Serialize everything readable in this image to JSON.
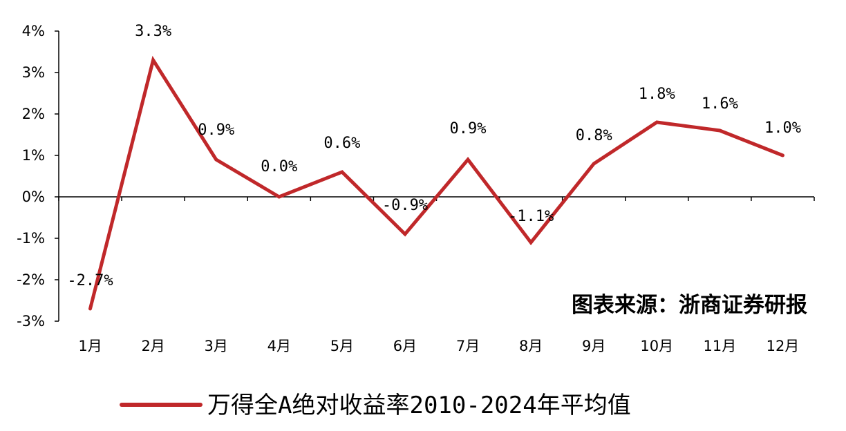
{
  "chart_data": {
    "type": "line",
    "categories": [
      "1月",
      "2月",
      "3月",
      "4月",
      "5月",
      "6月",
      "7月",
      "8月",
      "9月",
      "10月",
      "11月",
      "12月"
    ],
    "series": [
      {
        "name": "万得全A绝对收益率2010-2024年平均值",
        "values": [
          -2.7,
          3.3,
          0.9,
          0.0,
          0.6,
          -0.9,
          0.9,
          -1.1,
          0.8,
          1.8,
          1.6,
          1.0
        ],
        "labels": [
          "-2.7%",
          "3.3%",
          "0.9%",
          "0.0%",
          "0.6%",
          "-0.9%",
          "0.9%",
          "-1.1%",
          "0.8%",
          "1.8%",
          "1.6%",
          "1.0%"
        ]
      }
    ],
    "ylim": [
      -3,
      4
    ],
    "yticks": [
      -3,
      -2,
      -1,
      0,
      1,
      2,
      3,
      4
    ],
    "ytick_labels": [
      "-3%",
      "-2%",
      "-1%",
      "0%",
      "1%",
      "2%",
      "3%",
      "4%"
    ],
    "grid": false,
    "legend_position": "bottom-center",
    "source_note": "图表来源：浙商证券研报"
  },
  "colors": {
    "series": "#c0282a",
    "axis": "#000000"
  }
}
